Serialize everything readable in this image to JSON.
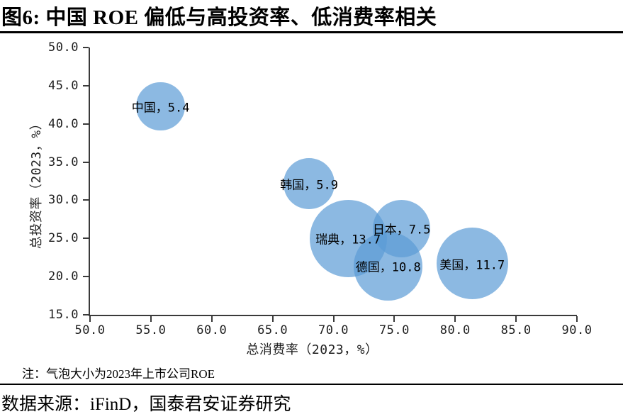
{
  "figure": {
    "title": "图6:  中国 ROE 偏低与高投资率、低消费率相关",
    "note": "注：气泡大小为2023年上市公司ROE",
    "source": "数据来源：iFinD，国泰君安证券研究"
  },
  "chart_data": {
    "type": "scatter",
    "subtype": "bubble",
    "title": "",
    "xlabel": "总消费率（2023，%）",
    "ylabel": "总投资率（2023，%）",
    "xlim": [
      50.0,
      90.0
    ],
    "ylim": [
      15.0,
      50.0
    ],
    "x_ticks": [
      50.0,
      55.0,
      60.0,
      65.0,
      70.0,
      75.0,
      80.0,
      85.0,
      90.0
    ],
    "y_ticks": [
      15.0,
      20.0,
      25.0,
      30.0,
      35.0,
      40.0,
      45.0,
      50.0
    ],
    "grid": false,
    "legend": false,
    "bubble_color": "#5B9BD5",
    "bubble_opacity": 0.7,
    "bubble_size_meaning": "2023年上市公司ROE",
    "points": [
      {
        "name": "中国",
        "label": "中国，5.4",
        "x": 55.8,
        "y": 42.3,
        "roe": 5.4
      },
      {
        "name": "韩国",
        "label": "韩国，5.9",
        "x": 68.0,
        "y": 32.2,
        "roe": 5.9
      },
      {
        "name": "瑞典",
        "label": "瑞典，13.7",
        "x": 71.2,
        "y": 25.0,
        "roe": 13.7
      },
      {
        "name": "日本",
        "label": "日本，7.5",
        "x": 75.6,
        "y": 26.3,
        "roe": 7.5
      },
      {
        "name": "德国",
        "label": "德国，10.8",
        "x": 74.5,
        "y": 21.4,
        "roe": 10.8
      },
      {
        "name": "美国",
        "label": "美国，11.7",
        "x": 81.4,
        "y": 21.7,
        "roe": 11.7
      }
    ]
  }
}
